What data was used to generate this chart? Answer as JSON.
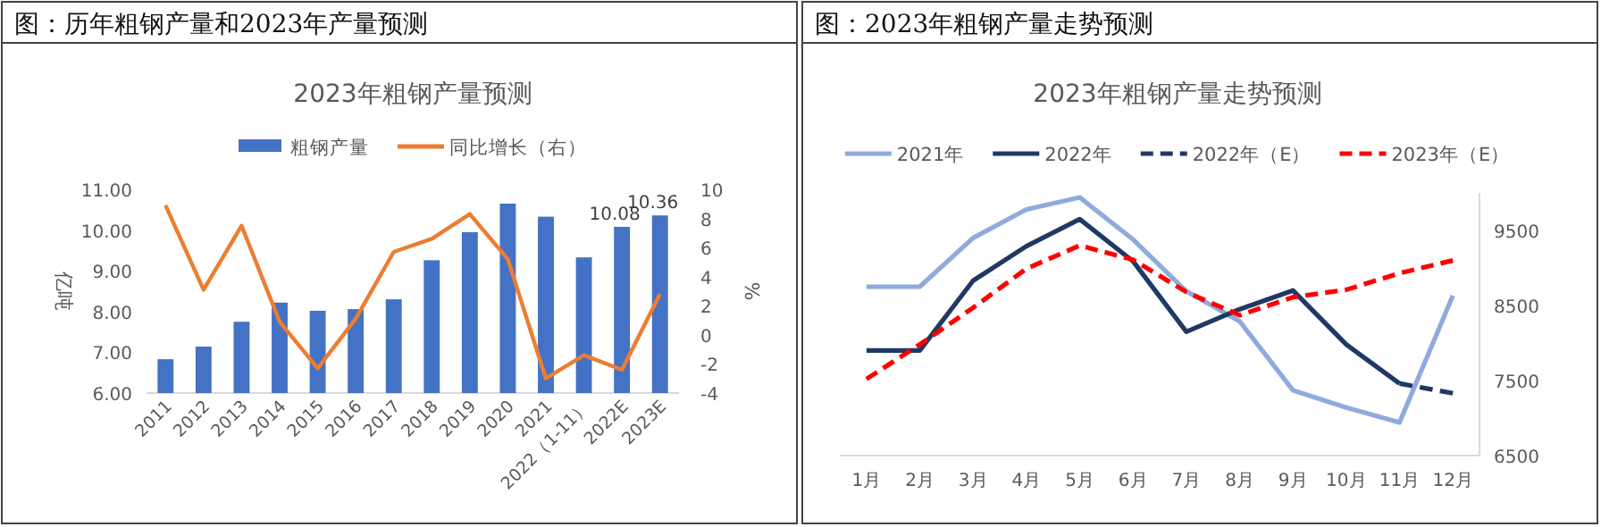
{
  "chart_data": [
    {
      "type": "bar",
      "title": "图：历年粗钢产量和2023年产量预测",
      "subtitle": "2023年粗钢产量预测",
      "ylabel": "亿吨",
      "y2label": "%",
      "legend": "top",
      "categories": [
        "2011",
        "2012",
        "2013",
        "2014",
        "2015",
        "2016",
        "2017",
        "2018",
        "2019",
        "2020",
        "2021",
        "2022（1-11）",
        "2022E",
        "2023E"
      ],
      "series": [
        {
          "name": "粗钢产量",
          "type": "bar",
          "color": "#4472c4",
          "values": [
            6.83,
            7.14,
            7.75,
            8.22,
            8.02,
            8.06,
            8.3,
            9.26,
            9.95,
            10.65,
            10.33,
            9.33,
            10.08,
            10.36
          ],
          "value_labels": [
            null,
            null,
            null,
            null,
            null,
            null,
            null,
            null,
            null,
            null,
            null,
            null,
            "10.08",
            "10.36"
          ]
        },
        {
          "name": "同比增长（右）",
          "type": "line",
          "axis": "y2",
          "color": "#ed7d31",
          "values": [
            8.9,
            3.1,
            7.5,
            0.9,
            -2.3,
            1.1,
            5.7,
            6.6,
            8.3,
            5.2,
            -3.0,
            -1.4,
            -2.4,
            2.8
          ]
        }
      ],
      "ylim": [
        6,
        11
      ],
      "yticks": [
        {
          "value": 6,
          "label": "6.00"
        },
        {
          "value": 7,
          "label": "7.00"
        },
        {
          "value": 8,
          "label": "8.00"
        },
        {
          "value": 9,
          "label": "9.00"
        },
        {
          "value": 10,
          "label": "10.00"
        },
        {
          "value": 11,
          "label": "11.00"
        }
      ],
      "y2lim": [
        -4,
        10
      ],
      "y2ticks": [
        -4,
        -2,
        0,
        2,
        4,
        6,
        8,
        10
      ]
    },
    {
      "type": "line",
      "title": "图：2023年粗钢产量走势预测",
      "subtitle": "2023年粗钢产量走势预测",
      "legend": "top",
      "categories": [
        "1月",
        "2月",
        "3月",
        "4月",
        "5月",
        "6月",
        "7月",
        "8月",
        "9月",
        "10月",
        "11月",
        "12月"
      ],
      "series": [
        {
          "name": "2021年",
          "axis": "y2",
          "color": "#8faadc",
          "line_style": "solid",
          "values": [
            8750,
            8750,
            9400,
            9780,
            9940,
            9380,
            8690,
            8290,
            7370,
            7140,
            6940,
            8630
          ]
        },
        {
          "name": "2022年",
          "axis": "y2",
          "color": "#203864",
          "line_style": "solid",
          "values": [
            7900,
            7900,
            8830,
            9290,
            9650,
            9090,
            8150,
            8450,
            8700,
            7980,
            7460,
            null
          ]
        },
        {
          "name": "2022年（E）",
          "axis": "y2",
          "color": "#203864",
          "line_style": "dashed",
          "values": [
            null,
            null,
            null,
            null,
            null,
            null,
            null,
            null,
            null,
            null,
            7460,
            7330
          ]
        },
        {
          "name": "2023年（E）",
          "axis": "y2",
          "color": "#ff0000",
          "line_style": "dashed",
          "values": [
            7520,
            7980,
            8470,
            8990,
            9300,
            9110,
            8680,
            8370,
            8610,
            8710,
            8930,
            9100
          ]
        }
      ],
      "y2lim": [
        6500,
        10000
      ],
      "y2ticks": [
        6500,
        7500,
        8500,
        9500
      ]
    }
  ]
}
